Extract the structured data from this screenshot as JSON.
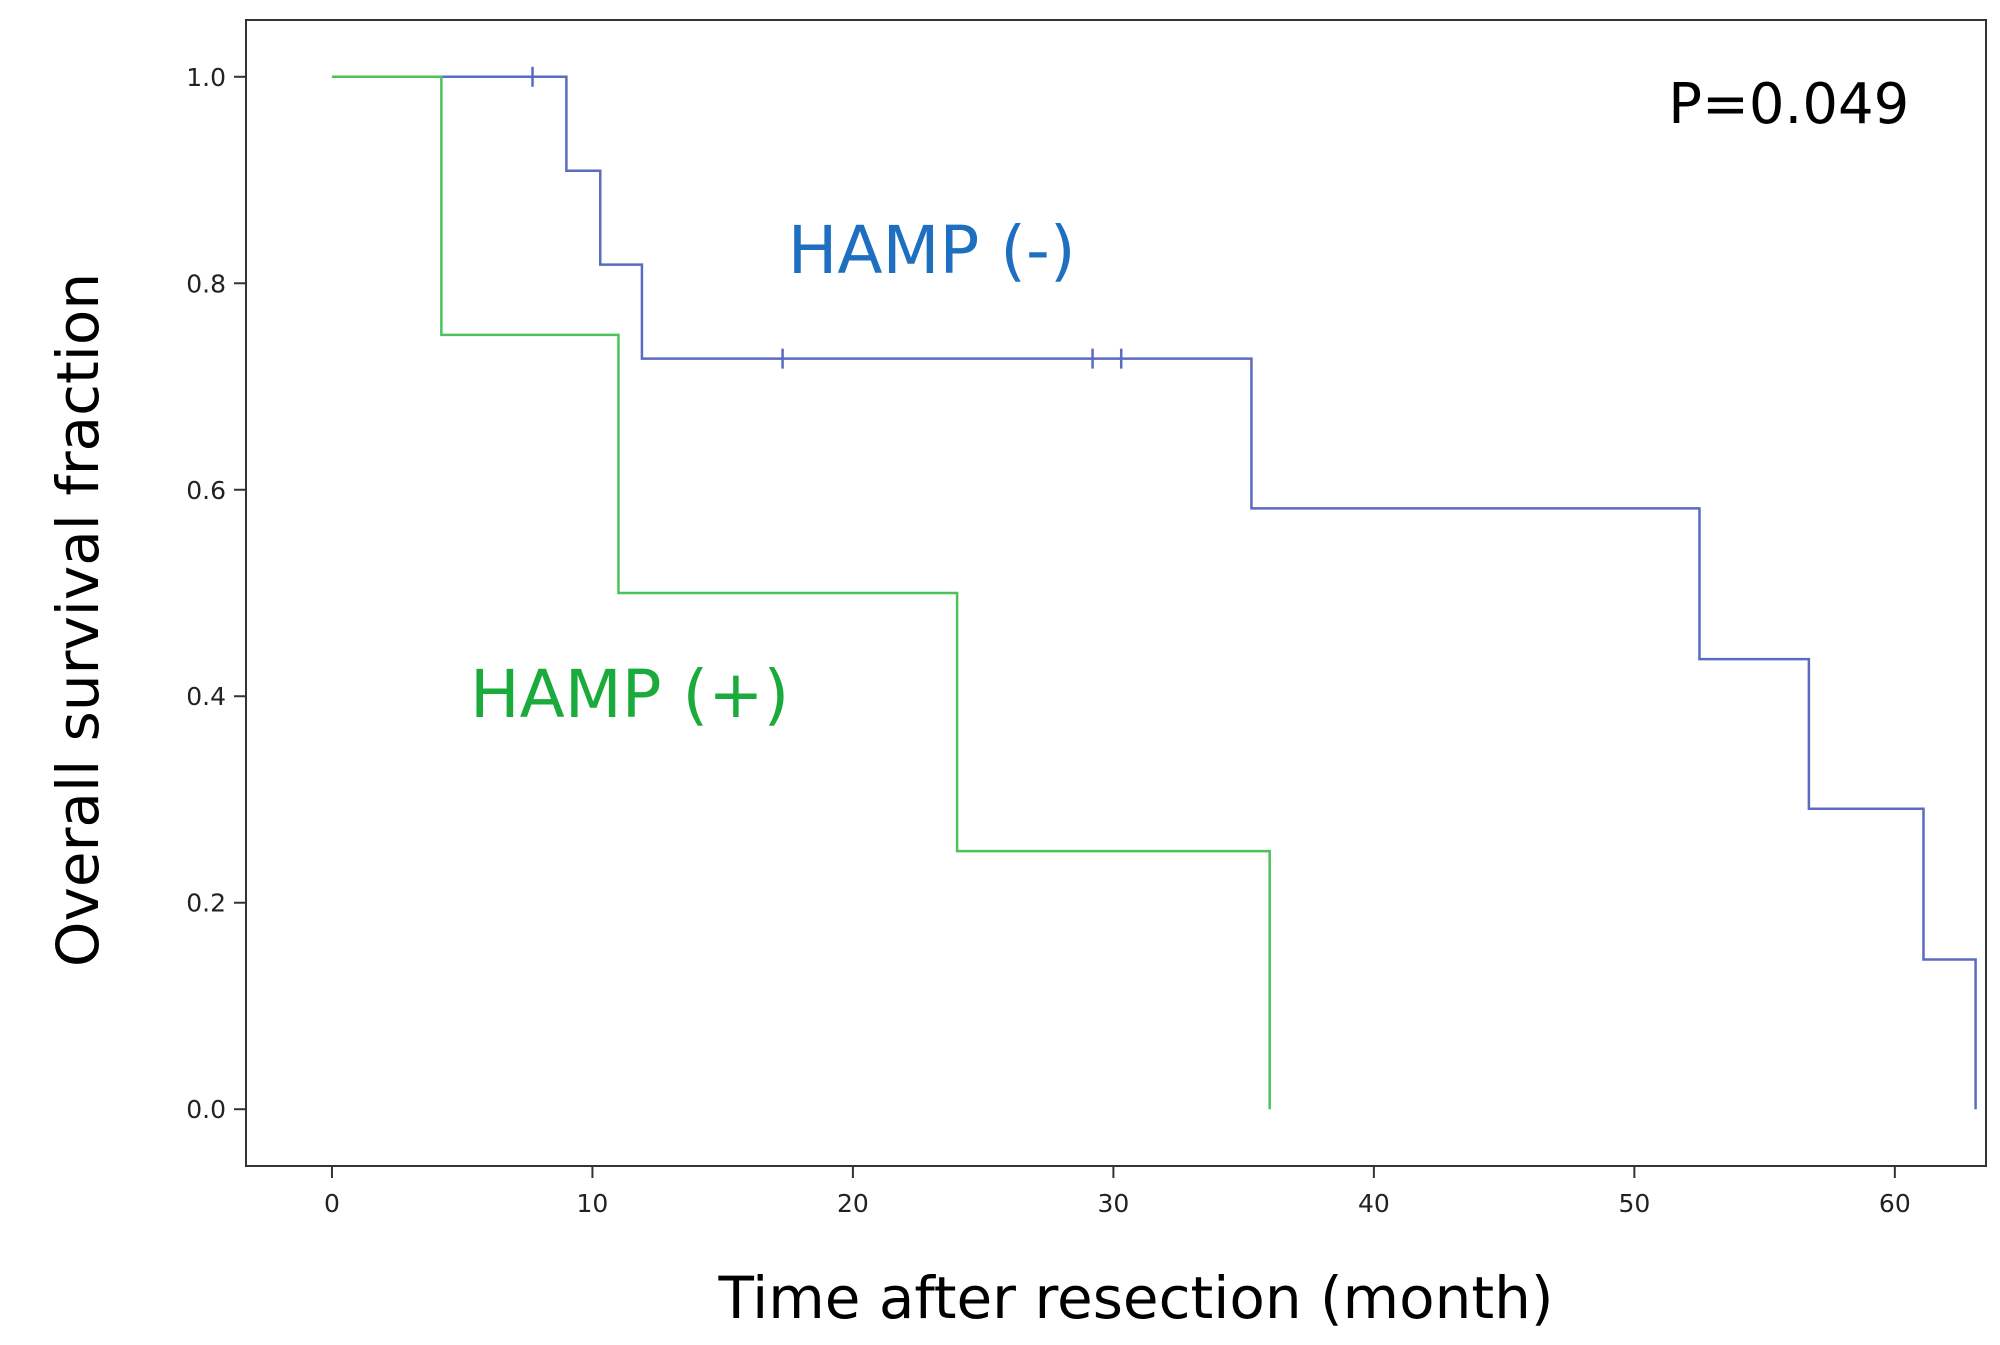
{
  "chart_data": {
    "type": "line",
    "subtype": "kaplan-meier-step",
    "title": "",
    "xlabel": "Time after resection (month)",
    "ylabel": "Overall survival fraction",
    "xlim": [
      -3.3,
      63.5
    ],
    "ylim": [
      -0.055,
      1.055
    ],
    "x_ticks": [
      0,
      10,
      20,
      30,
      40,
      50,
      60
    ],
    "y_ticks": [
      0.0,
      0.2,
      0.4,
      0.6,
      0.8,
      1.0
    ],
    "x_tick_labels": [
      "0",
      "10",
      "20",
      "30",
      "40",
      "50",
      "60"
    ],
    "y_tick_labels": [
      "0.0",
      "0.2",
      "0.4",
      "0.6",
      "0.8",
      "1.0"
    ],
    "grid": false,
    "legend": "none",
    "series": [
      {
        "name": "HAMP (-)",
        "color": "#5b6bbf",
        "label_color": "#1f6fc0",
        "steps": [
          [
            0,
            1.0
          ],
          [
            9.0,
            0.909
          ],
          [
            10.3,
            0.818
          ],
          [
            11.9,
            0.727
          ],
          [
            35.3,
            0.582
          ],
          [
            52.5,
            0.436
          ],
          [
            56.7,
            0.291
          ],
          [
            61.1,
            0.145
          ],
          [
            63.1,
            0.0
          ]
        ],
        "censored": [
          [
            7.7,
            1.0
          ],
          [
            17.3,
            0.727
          ],
          [
            29.2,
            0.727
          ],
          [
            30.3,
            0.727
          ]
        ]
      },
      {
        "name": "HAMP (+)",
        "color": "#4cc35a",
        "label_color": "#1aab3c",
        "steps": [
          [
            0,
            1.0
          ],
          [
            4.2,
            0.75
          ],
          [
            11.0,
            0.5
          ],
          [
            24.0,
            0.25
          ],
          [
            36.0,
            0.0
          ]
        ],
        "censored": []
      }
    ],
    "annotations": [
      {
        "text": "HAMP (-)",
        "series": 0,
        "x": 17.5,
        "y": 0.81
      },
      {
        "text": "HAMP (+)",
        "series": 1,
        "x": 5.3,
        "y": 0.38
      },
      {
        "text": "P=0.049",
        "x": 51.3,
        "y": 0.955
      }
    ]
  }
}
